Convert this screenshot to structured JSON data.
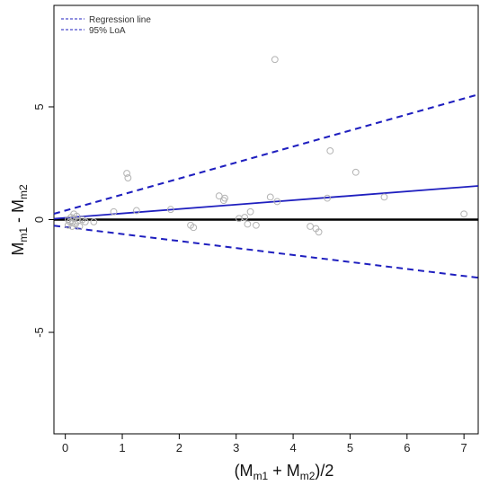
{
  "chart_data": {
    "type": "scatter",
    "title": "",
    "xlabel": {
      "open": "(M",
      "sub1": "m1",
      "mid": " + M",
      "sub2": "m2",
      "close": ")/2"
    },
    "ylabel": {
      "a": "M",
      "suba": "m1",
      "mid": " - M",
      "subb": "m2"
    },
    "xlim": [
      -0.2,
      7.25
    ],
    "ylim": [
      -9.5,
      9.5
    ],
    "xticks": [
      0,
      1,
      2,
      3,
      4,
      5,
      6,
      7
    ],
    "yticks": [
      -5,
      0,
      5
    ],
    "grid": false,
    "legend_position": "top-left",
    "legend": [
      {
        "label": "Regression line",
        "style": "dashed"
      },
      {
        "label": "95% LoA",
        "style": "dashed"
      }
    ],
    "colors": {
      "regression": "#1f1fbf",
      "points": "#b3b3b3",
      "zero_line": "#000000"
    },
    "zero_line": 0,
    "regression": {
      "intercept": 0.08,
      "slope": 0.195
    },
    "loa_upper": {
      "intercept": 0.4,
      "slope": 0.71
    },
    "loa_lower": {
      "intercept": -0.33,
      "slope": -0.31
    },
    "points": [
      [
        0.05,
        0.0
      ],
      [
        0.08,
        -0.1
      ],
      [
        0.1,
        0.1
      ],
      [
        0.12,
        -0.15
      ],
      [
        0.15,
        0.05
      ],
      [
        0.18,
        -0.2
      ],
      [
        0.2,
        0.15
      ],
      [
        0.22,
        -0.05
      ],
      [
        0.05,
        -0.25
      ],
      [
        0.25,
        -0.3
      ],
      [
        0.15,
        0.25
      ],
      [
        0.12,
        -0.3
      ],
      [
        0.3,
        0.0
      ],
      [
        0.35,
        -0.1
      ],
      [
        0.5,
        -0.1
      ],
      [
        0.85,
        0.35
      ],
      [
        1.08,
        2.05
      ],
      [
        1.1,
        1.85
      ],
      [
        1.25,
        0.4
      ],
      [
        1.85,
        0.45
      ],
      [
        2.2,
        -0.25
      ],
      [
        2.25,
        -0.35
      ],
      [
        2.7,
        1.05
      ],
      [
        2.78,
        0.85
      ],
      [
        2.8,
        0.95
      ],
      [
        3.05,
        0.05
      ],
      [
        3.15,
        0.1
      ],
      [
        3.2,
        -0.2
      ],
      [
        3.25,
        0.35
      ],
      [
        3.35,
        -0.25
      ],
      [
        3.6,
        1.0
      ],
      [
        3.68,
        7.1
      ],
      [
        3.72,
        0.8
      ],
      [
        4.3,
        -0.3
      ],
      [
        4.4,
        -0.4
      ],
      [
        4.45,
        -0.55
      ],
      [
        4.6,
        0.95
      ],
      [
        4.65,
        3.05
      ],
      [
        5.1,
        2.1
      ],
      [
        5.6,
        1.0
      ],
      [
        7.0,
        0.25
      ]
    ]
  }
}
